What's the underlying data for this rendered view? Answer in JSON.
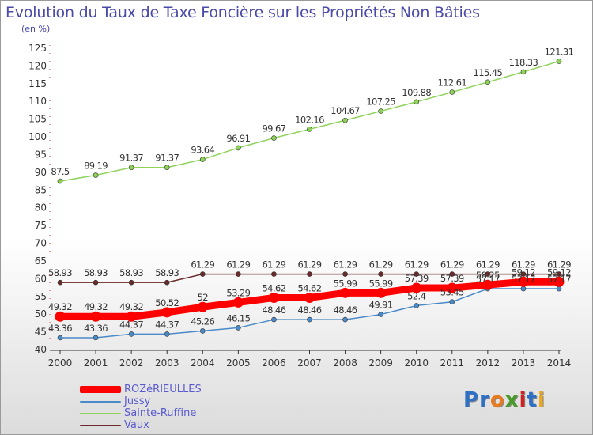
{
  "title": "Evolution du Taux de Taxe Foncière sur les Propriétés Non Bâties",
  "unit_label": "(en %)",
  "logo": {
    "text": "Proxiti",
    "letters": [
      "P",
      "r",
      "o",
      "x",
      "i",
      "t",
      "i"
    ],
    "colors": [
      "#2f6fc4",
      "#2f6fc4",
      "#e87a1f",
      "#4a9a2a",
      "#cc2222",
      "#2f6fc4",
      "#e8a81f"
    ]
  },
  "chart_data": {
    "type": "line",
    "title": "Evolution du Taux de Taxe Foncière sur les Propriétés Non Bâties",
    "ylabel": "(en %)",
    "xlabel": "",
    "x": [
      "2000",
      "2001",
      "2002",
      "2003",
      "2004",
      "2005",
      "2006",
      "2007",
      "2008",
      "2009",
      "2010",
      "2011",
      "2012",
      "2013",
      "2014"
    ],
    "ylim": [
      40,
      125
    ],
    "yticks": [
      40,
      45,
      50,
      55,
      60,
      65,
      70,
      75,
      80,
      85,
      90,
      95,
      100,
      105,
      110,
      115,
      120,
      125
    ],
    "grid": false,
    "legend": "bottom-left",
    "series": [
      {
        "name": "ROZéRIEULLES",
        "color": "#ff0000",
        "emphasis": true,
        "values": [
          49.32,
          49.32,
          49.32,
          50.52,
          52,
          53.29,
          54.62,
          54.62,
          55.99,
          55.99,
          57.39,
          57.39,
          58.25,
          59.12,
          59.12
        ],
        "labels": [
          "49.32",
          "49.32",
          "49.32",
          "50.52",
          "52",
          "53.29",
          "54.62",
          "54.62",
          "55.99",
          "55.99",
          "57.39",
          "57.39",
          "58.25",
          "59.12",
          "59.12"
        ]
      },
      {
        "name": "Jussy",
        "color": "#4a8ac8",
        "values": [
          43.36,
          43.36,
          44.37,
          44.37,
          45.26,
          46.15,
          48.46,
          48.46,
          48.46,
          49.91,
          52.4,
          53.45,
          57.17,
          57.17,
          57.17
        ],
        "labels": [
          "43.36",
          "43.36",
          "44.37",
          "44.37",
          "45.26",
          "46.15",
          "48.46",
          "48.46",
          "48.46",
          "49.91",
          "52.4",
          "53.45",
          "57.17",
          "57.17",
          "57.17"
        ]
      },
      {
        "name": "Sainte-Ruffine",
        "color": "#8ed25a",
        "values": [
          87.5,
          89.19,
          91.37,
          91.37,
          93.64,
          96.91,
          99.67,
          102.16,
          104.67,
          107.25,
          109.88,
          112.61,
          115.45,
          118.33,
          121.31
        ],
        "labels": [
          "87.5",
          "89.19",
          "91.37",
          "91.37",
          "93.64",
          "96.91",
          "99.67",
          "102.16",
          "104.67",
          "107.25",
          "109.88",
          "112.61",
          "115.45",
          "118.33",
          "121.31"
        ]
      },
      {
        "name": "Vaux",
        "color": "#6b2a2a",
        "values": [
          58.93,
          58.93,
          58.93,
          58.93,
          61.29,
          61.29,
          61.29,
          61.29,
          61.29,
          61.29,
          61.29,
          61.29,
          61.29,
          61.29,
          61.29
        ],
        "labels": [
          "58.93",
          "58.93",
          "58.93",
          "58.93",
          "61.29",
          "61.29",
          "61.29",
          "61.29",
          "61.29",
          "61.29",
          "61.29",
          "61.29",
          "61.29",
          "61.29",
          "61.29"
        ]
      }
    ]
  }
}
